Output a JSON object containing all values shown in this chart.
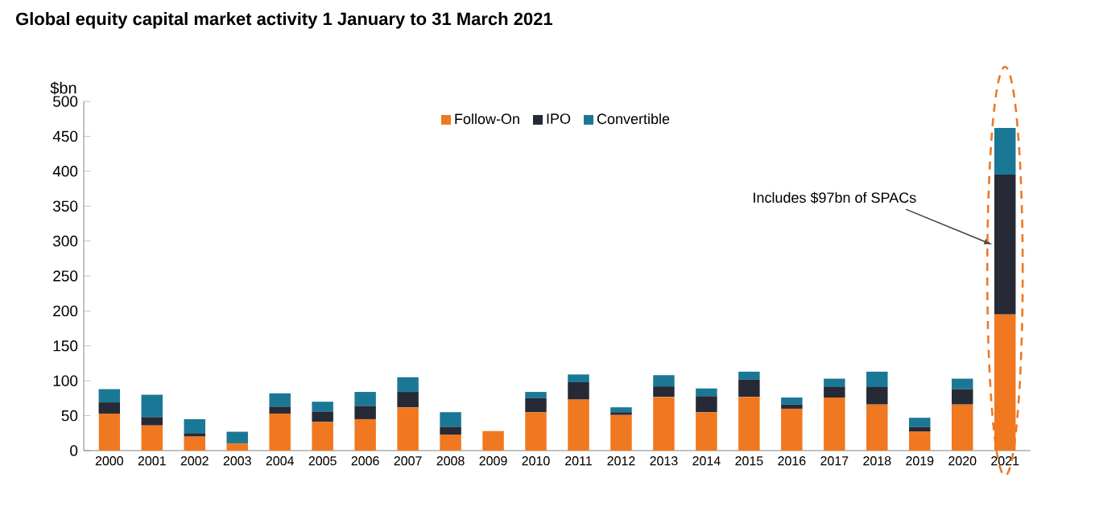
{
  "chart_data": {
    "type": "bar",
    "stacked": true,
    "title": "Global equity capital market activity 1 January to 31 March 2021",
    "ylabel": "$bn",
    "categories": [
      "2000",
      "2001",
      "2002",
      "2003",
      "2004",
      "2005",
      "2006",
      "2007",
      "2008",
      "2009",
      "2010",
      "2011",
      "2012",
      "2013",
      "2014",
      "2015",
      "2016",
      "2017",
      "2018",
      "2019",
      "2020",
      "2021"
    ],
    "series": [
      {
        "name": "Follow-On",
        "color": "#f07820",
        "values": [
          53,
          36,
          20,
          10,
          53,
          41,
          45,
          62,
          23,
          28,
          55,
          73,
          51,
          77,
          55,
          77,
          60,
          76,
          66,
          27,
          66,
          195
        ]
      },
      {
        "name": "IPO",
        "color": "#252a36",
        "values": [
          16,
          12,
          5,
          1,
          10,
          15,
          19,
          22,
          11,
          0,
          20,
          25,
          4,
          15,
          23,
          25,
          6,
          15,
          25,
          7,
          22,
          200
        ]
      },
      {
        "name": "Convertible",
        "color": "#1a7896",
        "values": [
          19,
          32,
          20,
          16,
          19,
          14,
          20,
          21,
          21,
          0,
          9,
          11,
          7,
          16,
          11,
          11,
          10,
          12,
          22,
          13,
          15,
          67
        ]
      }
    ],
    "ylim": [
      0,
      500
    ],
    "yticks": [
      0,
      50,
      100,
      150,
      200,
      250,
      300,
      350,
      400,
      450,
      500
    ],
    "grid": false,
    "legend": "top",
    "annotations": [
      "Includes $97bn of SPACs"
    ]
  }
}
